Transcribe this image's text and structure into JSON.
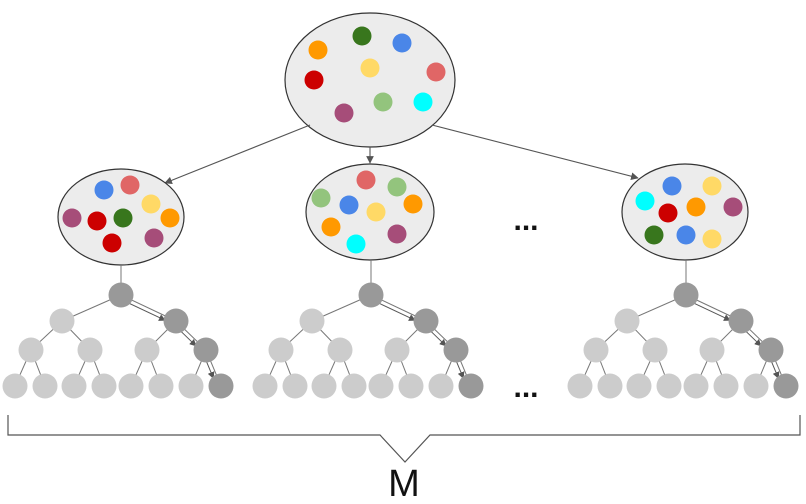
{
  "labels": {
    "ellipsis_top": "...",
    "ellipsis_bottom": "...",
    "brace_label": "M"
  },
  "colors": {
    "ellipse_fill": "#ececec",
    "ellipse_stroke": "#333333",
    "node_light": "#cccccc",
    "node_dark": "#999999",
    "edge": "#555555",
    "orange": "#ff9900",
    "dark_green": "#38761d",
    "blue": "#4a86e8",
    "salmon": "#e06666",
    "red": "#cc0000",
    "yellow": "#ffd966",
    "light_green": "#93c47d",
    "cyan": "#00ffff",
    "purple": "#a64d79"
  },
  "root_dots": [
    "orange",
    "dark_green",
    "blue",
    "salmon",
    "red",
    "yellow",
    "light_green",
    "cyan",
    "purple"
  ],
  "samples": [
    {
      "dots": [
        "blue",
        "salmon",
        "purple",
        "red",
        "dark_green",
        "yellow",
        "orange",
        "red",
        "purple"
      ]
    },
    {
      "dots": [
        "light_green",
        "salmon",
        "light_green",
        "blue",
        "yellow",
        "orange",
        "orange",
        "cyan",
        "purple"
      ]
    },
    {
      "dots": [
        "cyan",
        "blue",
        "yellow",
        "red",
        "orange",
        "purple",
        "dark_green",
        "blue",
        "yellow"
      ]
    }
  ]
}
